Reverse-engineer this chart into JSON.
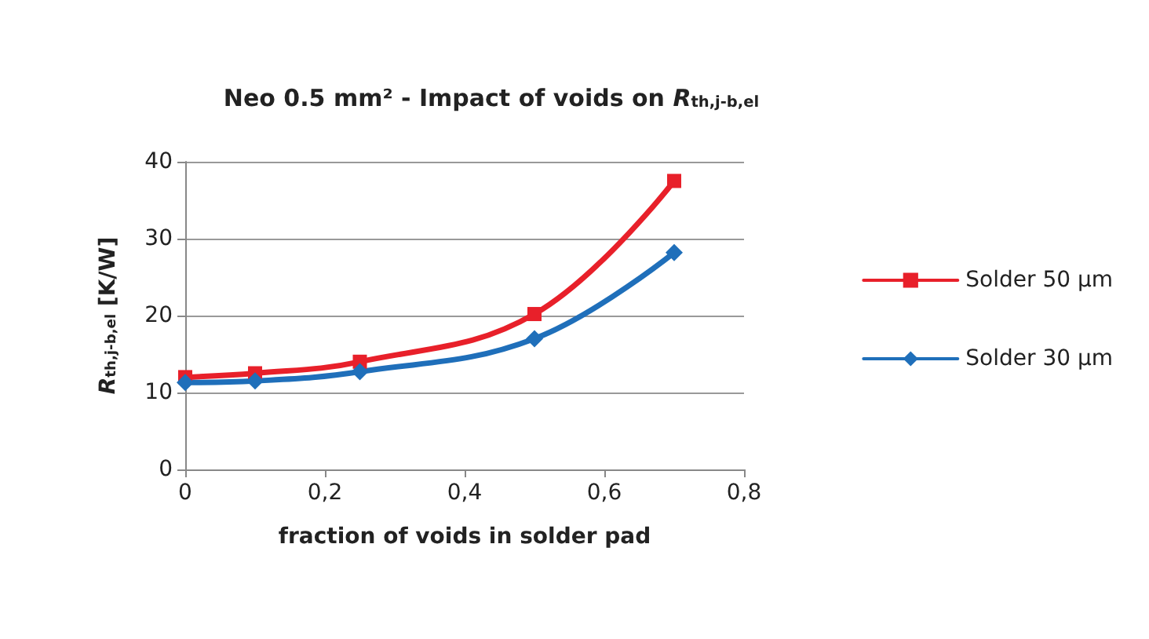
{
  "chart_data": {
    "type": "line",
    "title": "Neo 0.5 mm² - Impact of voids on R$_{th,j-b,el}$",
    "xlabel": "fraction of voids in solder pad",
    "ylabel": "R$_{th,j-b,el}$ [K/W]",
    "x": [
      0,
      0.1,
      0.25,
      0.5,
      0.7
    ],
    "series": [
      {
        "name": "Solder 50 µm",
        "color": "#e8202a",
        "marker": "square",
        "values": [
          12,
          12.5,
          14,
          20.2,
          37.5
        ]
      },
      {
        "name": "Solder 30 µm",
        "color": "#1f6fba",
        "marker": "diamond",
        "values": [
          11.3,
          11.5,
          12.7,
          17,
          28.2
        ]
      }
    ],
    "xlim": [
      0,
      0.8
    ],
    "xticks": [
      0,
      {
        "value": 0.2,
        "label": "0,2"
      },
      {
        "value": 0.4,
        "label": "0,4"
      },
      {
        "value": 0.6,
        "label": "0,6"
      },
      {
        "value": 0.8,
        "label": "0,8"
      }
    ],
    "ylim": [
      0,
      40
    ],
    "yticks": [
      0,
      10,
      20,
      30,
      40
    ],
    "grid": "y",
    "legend": "right",
    "line_style": "solid"
  }
}
